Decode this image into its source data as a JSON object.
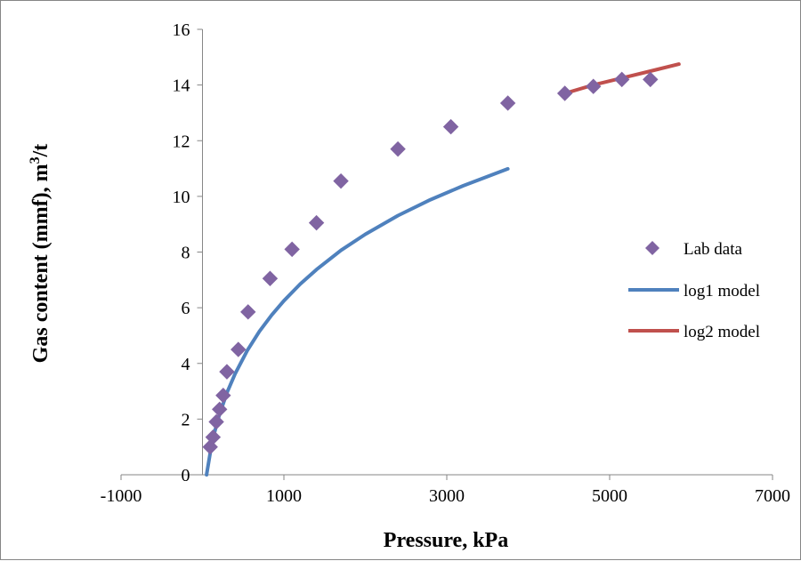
{
  "chart_data": {
    "type": "scatter",
    "xlabel": "Pressure, kPa",
    "ylabel_main": "Gas content (mmf), m",
    "ylabel_sup": "3",
    "ylabel_tail": "/t",
    "xlim": [
      -1000,
      7000
    ],
    "ylim": [
      0,
      16
    ],
    "xticks": [
      -1000,
      1000,
      3000,
      5000,
      7000
    ],
    "xtick_labels": [
      "-1000",
      "1000",
      "3000",
      "5000",
      "7000"
    ],
    "yticks": [
      0,
      2,
      4,
      6,
      8,
      10,
      12,
      14,
      16
    ],
    "ytick_labels": [
      "0",
      "2",
      "4",
      "6",
      "8",
      "10",
      "12",
      "14",
      "16"
    ],
    "grid": false,
    "legend_position": "right",
    "series": [
      {
        "name": "Lab data",
        "kind": "scatter",
        "marker": "diamond",
        "color": "#8064A2",
        "x": [
          95,
          130,
          170,
          210,
          255,
          300,
          440,
          560,
          830,
          1100,
          1400,
          1700,
          2400,
          3050,
          3750,
          4450,
          4800,
          5150,
          5500
        ],
        "y": [
          1.0,
          1.35,
          1.9,
          2.35,
          2.85,
          3.7,
          4.5,
          5.85,
          7.05,
          8.1,
          9.05,
          10.55,
          11.7,
          12.5,
          13.35,
          13.7,
          13.95,
          14.2,
          14.2
        ]
      },
      {
        "name": "log1 model",
        "kind": "line",
        "color": "#4F81BD",
        "x": [
          50,
          100,
          150,
          200,
          300,
          400,
          550,
          700,
          850,
          1000,
          1200,
          1400,
          1700,
          2000,
          2400,
          2800,
          3200,
          3750
        ],
        "y": [
          0.0,
          0.88,
          1.54,
          2.08,
          2.94,
          3.62,
          4.46,
          5.15,
          5.74,
          6.25,
          6.85,
          7.37,
          8.06,
          8.64,
          9.31,
          9.88,
          10.38,
          10.99
        ]
      },
      {
        "name": "log2 model",
        "kind": "line",
        "color": "#C0504D",
        "x": [
          4450,
          4800,
          5150,
          5500,
          5850
        ],
        "y": [
          13.7,
          14.0,
          14.25,
          14.5,
          14.75
        ]
      }
    ]
  }
}
